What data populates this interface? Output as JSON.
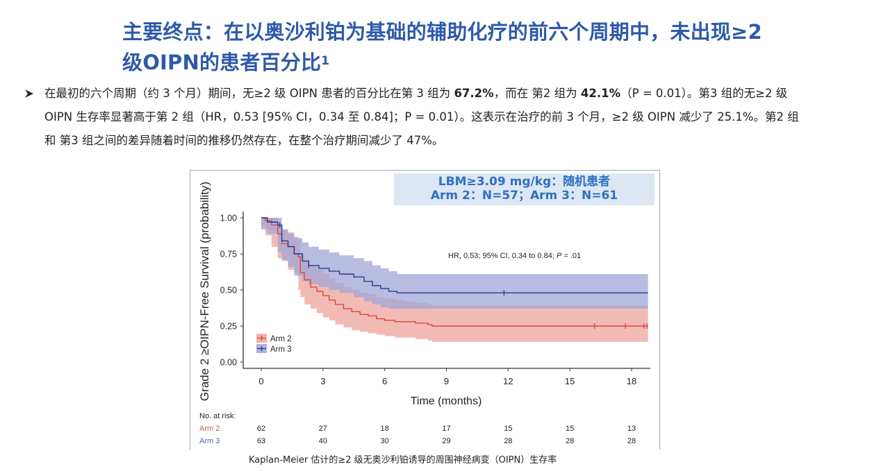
{
  "slide": {
    "title_line1": "主要终点：在以奥沙利铂为基础的辅助化疗的前六个周期中，未出现≥2",
    "title_line2": "级OIPN的患者百分比",
    "title_superscript": "1",
    "bullet_icon": "arrowhead-bullet-icon",
    "bullet": {
      "t1": "在最初的六个周期（约 3 个月）期间，无≥2 级 OIPN 患者的百分比在第 3 组为 ",
      "b1": "67.2%",
      "t2": "，而在 第2 组为 ",
      "b2": "42.1%",
      "t3": "（P = 0.01）。第3 组的无≥2 级 OIPN 生存率显著高于第 2 组（HR，0.53 [95% CI，0.34 至 0.84]；P = 0.01）。这表示在治疗的前 3 个月，≥2 级 OIPN 减少了 25.1%。第2 组和 第3 组之间的差异随着时间的推移仍然存在，在整个治疗期间减少了 47%。"
    },
    "subgroup_box": {
      "line1": "LBM≥3.09 mg/kg：随机患者",
      "line2": "Arm 2：N=57；Arm 3：N=61"
    },
    "caption": "Kaplan-Meier 估计的≥2 级无奥沙利铂诱导的周围神经病变（OIPN）生存率"
  },
  "chart_data": {
    "type": "line",
    "subtype": "kaplan-meier step curve with confidence bands",
    "title": "",
    "xlabel": "Time (months)",
    "ylabel": "Grade 2 ≥OIPN-Free Survival (probability)",
    "xlim": [
      0,
      18.8
    ],
    "ylim": [
      0,
      1
    ],
    "x_ticks": [
      0,
      3,
      6,
      9,
      12,
      15,
      18
    ],
    "x_tick_labels": [
      "0",
      "3",
      "6",
      "9",
      "12",
      "15",
      "18"
    ],
    "y_ticks": [
      0,
      0.25,
      0.5,
      0.75,
      1.0
    ],
    "y_tick_labels": [
      "0.00",
      "0.25",
      "0.50",
      "0.75",
      "1.00"
    ],
    "grid": false,
    "annotation": {
      "text_pre": "HR, 0.53; 95% CI, 0.34 to 0.84; ",
      "p_label": "P",
      "text_post": " = .01"
    },
    "legend": {
      "placement": "bottom-left",
      "entries": [
        "Arm 2",
        "Arm 3"
      ]
    },
    "colors": {
      "Arm 2": "#e0453a",
      "Arm 3": "#2a3b8f",
      "Arm 2 band": "#eea39c",
      "Arm 3 band": "#9fa6d6"
    },
    "series": [
      {
        "name": "Arm 2",
        "times": [
          0,
          0.2,
          0.5,
          0.8,
          1.0,
          1.3,
          1.6,
          1.8,
          1.9,
          2.1,
          2.4,
          2.7,
          3.0,
          3.3,
          3.6,
          4.0,
          4.4,
          4.8,
          5.2,
          5.6,
          6.0,
          6.5,
          7.0,
          7.5,
          8.1,
          8.3,
          18.8
        ],
        "survival": [
          1.0,
          0.98,
          0.95,
          0.89,
          0.82,
          0.8,
          0.75,
          0.73,
          0.62,
          0.57,
          0.52,
          0.49,
          0.46,
          0.43,
          0.4,
          0.37,
          0.35,
          0.33,
          0.32,
          0.3,
          0.29,
          0.28,
          0.28,
          0.27,
          0.26,
          0.25,
          0.25
        ],
        "ci_upper": [
          1.0,
          1.0,
          1.0,
          0.96,
          0.92,
          0.9,
          0.87,
          0.85,
          0.76,
          0.71,
          0.67,
          0.64,
          0.61,
          0.58,
          0.55,
          0.52,
          0.5,
          0.48,
          0.47,
          0.45,
          0.44,
          0.43,
          0.42,
          0.41,
          0.4,
          0.39,
          0.39
        ],
        "ci_lower": [
          1.0,
          0.94,
          0.88,
          0.8,
          0.72,
          0.7,
          0.64,
          0.62,
          0.5,
          0.45,
          0.4,
          0.37,
          0.34,
          0.31,
          0.29,
          0.26,
          0.24,
          0.22,
          0.21,
          0.2,
          0.19,
          0.18,
          0.17,
          0.17,
          0.16,
          0.15,
          0.14
        ],
        "censor_times": [
          16.2,
          17.7,
          18.6,
          18.75
        ],
        "censor_values": [
          0.25,
          0.25,
          0.25,
          0.25
        ],
        "at_risk": [
          62,
          27,
          18,
          17,
          15,
          15,
          13
        ]
      },
      {
        "name": "Arm 3",
        "times": [
          0,
          0.3,
          0.8,
          1.0,
          1.3,
          1.6,
          2.0,
          2.3,
          2.8,
          3.3,
          3.8,
          4.5,
          5.0,
          5.4,
          5.8,
          6.2,
          6.6,
          18.8
        ],
        "survival": [
          1.0,
          0.97,
          0.95,
          0.84,
          0.8,
          0.75,
          0.7,
          0.67,
          0.65,
          0.63,
          0.61,
          0.59,
          0.56,
          0.53,
          0.51,
          0.49,
          0.48,
          0.48
        ],
        "ci_upper": [
          1.0,
          1.0,
          1.0,
          0.92,
          0.89,
          0.86,
          0.83,
          0.8,
          0.78,
          0.76,
          0.74,
          0.72,
          0.7,
          0.67,
          0.65,
          0.63,
          0.61,
          0.61
        ],
        "ci_lower": [
          1.0,
          0.92,
          0.89,
          0.76,
          0.71,
          0.66,
          0.6,
          0.56,
          0.54,
          0.52,
          0.5,
          0.48,
          0.45,
          0.42,
          0.4,
          0.38,
          0.37,
          0.37
        ],
        "censor_times": [
          0.9,
          2.3,
          11.8
        ],
        "censor_values": [
          0.95,
          0.67,
          0.48
        ],
        "at_risk": [
          63,
          40,
          30,
          29,
          28,
          28,
          28
        ]
      }
    ],
    "risk_table": {
      "title": "No. at risk:",
      "times": [
        0,
        3,
        6,
        9,
        12,
        15,
        18
      ]
    }
  }
}
